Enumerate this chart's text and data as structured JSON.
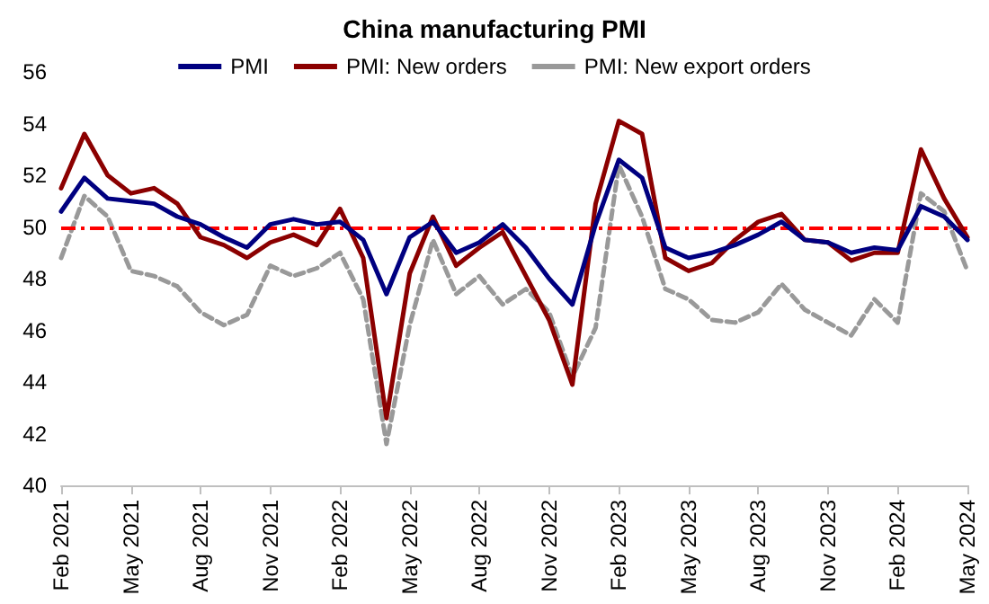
{
  "chart_data": {
    "type": "line",
    "title": "China manufacturing PMI",
    "categories": [
      "Feb 2021",
      null,
      null,
      "May 2021",
      null,
      null,
      "Aug 2021",
      null,
      null,
      "Nov 2021",
      null,
      null,
      "Feb 2022",
      null,
      null,
      "May 2022",
      null,
      null,
      "Aug 2022",
      null,
      null,
      "Nov 2022",
      null,
      null,
      "Feb 2023",
      null,
      null,
      "May 2023",
      null,
      null,
      "Aug 2023",
      null,
      null,
      "Nov 2023",
      null,
      null,
      "Feb 2024",
      null,
      null,
      "May 2024"
    ],
    "series": [
      {
        "name": "PMI",
        "color": "#000080",
        "line_style": "solid",
        "values": [
          50.6,
          51.9,
          51.1,
          51.0,
          50.9,
          50.4,
          50.1,
          49.6,
          49.2,
          50.1,
          50.3,
          50.1,
          50.2,
          49.5,
          47.4,
          49.6,
          50.2,
          49.0,
          49.4,
          50.1,
          49.2,
          48.0,
          47.0,
          50.1,
          52.6,
          51.9,
          49.2,
          48.8,
          49.0,
          49.3,
          49.7,
          50.2,
          49.5,
          49.4,
          49.0,
          49.2,
          49.1,
          50.8,
          50.4,
          49.5
        ]
      },
      {
        "name": "PMI: New orders",
        "color": "#8b0000",
        "line_style": "solid",
        "values": [
          51.5,
          53.6,
          52.0,
          51.3,
          51.5,
          50.9,
          49.6,
          49.3,
          48.8,
          49.4,
          49.7,
          49.3,
          50.7,
          48.8,
          42.6,
          48.2,
          50.4,
          48.5,
          49.2,
          49.8,
          48.1,
          46.4,
          43.9,
          50.9,
          54.1,
          53.6,
          48.8,
          48.3,
          48.6,
          49.5,
          50.2,
          50.5,
          49.5,
          49.4,
          48.7,
          49.0,
          49.0,
          53.0,
          51.1,
          49.6
        ]
      },
      {
        "name": "PMI: New export orders",
        "color": "#999999",
        "line_style": "dashed",
        "values": [
          48.8,
          51.2,
          50.4,
          48.3,
          48.1,
          47.7,
          46.7,
          46.2,
          46.6,
          48.5,
          48.1,
          48.4,
          49.0,
          47.2,
          41.6,
          46.2,
          49.5,
          47.4,
          48.1,
          47.0,
          47.6,
          46.7,
          44.2,
          46.1,
          52.4,
          50.4,
          47.6,
          47.2,
          46.4,
          46.3,
          46.7,
          47.8,
          46.8,
          46.3,
          45.8,
          47.2,
          46.3,
          51.3,
          50.6,
          48.3
        ]
      }
    ],
    "ylim": [
      40,
      56
    ],
    "yticks": [
      40,
      42,
      44,
      46,
      48,
      50,
      52,
      54,
      56
    ],
    "grid": false,
    "legend": "top",
    "marker": "none",
    "ref_lines": [
      {
        "axis": "y",
        "value": 50,
        "color": "#ff0000",
        "line_style": "dashdot"
      }
    ]
  }
}
